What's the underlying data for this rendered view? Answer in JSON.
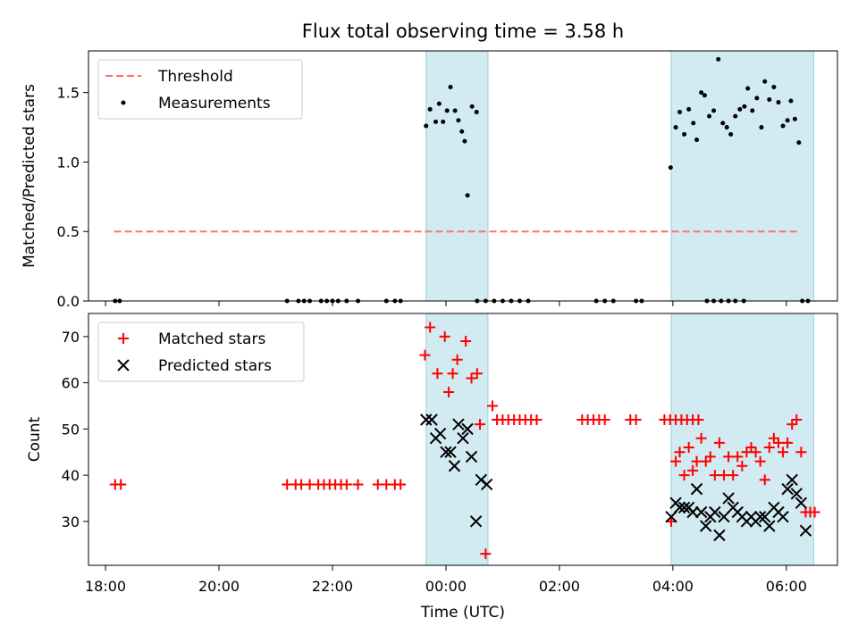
{
  "chart_data": [
    {
      "type": "scatter",
      "title": "Flux total observing time = 3.58 h",
      "ylabel": "Matched/Predicted stars",
      "xlabel": "",
      "ylim": [
        0,
        1.8
      ],
      "yticks": [
        "0.0",
        "0.5",
        "1.0",
        "1.5"
      ],
      "xrange_hours": [
        17.7,
        30.9
      ],
      "xticks_hours": [
        18,
        20,
        22,
        24,
        26,
        28,
        30
      ],
      "legend_position": "top-left",
      "highlight_spans_hours": [
        [
          23.65,
          24.74
        ],
        [
          27.97,
          30.48
        ]
      ],
      "highlight_color": "#add8e6",
      "series": [
        {
          "name": "Threshold",
          "style": "dashed-line",
          "color": "#ff7070",
          "x_hours": [
            18.15,
            30.25
          ],
          "y": [
            0.5,
            0.5
          ]
        },
        {
          "name": "Measurements",
          "style": "dot",
          "color": "#000000",
          "x_hours": [
            18.17,
            18.25,
            21.2,
            21.4,
            21.5,
            21.6,
            21.8,
            21.9,
            22.0,
            22.1,
            22.25,
            22.45,
            22.95,
            23.1,
            23.2,
            24.55,
            24.7,
            24.85,
            25.0,
            25.15,
            25.3,
            25.45,
            26.65,
            26.8,
            26.95,
            27.35,
            27.45,
            28.6,
            28.72,
            28.85,
            28.98,
            29.1,
            29.25,
            30.28,
            30.38
          ],
          "y_dots_zero": true,
          "points": [
            [
              23.65,
              1.26
            ],
            [
              23.72,
              1.38
            ],
            [
              23.82,
              1.29
            ],
            [
              23.88,
              1.42
            ],
            [
              23.95,
              1.29
            ],
            [
              24.02,
              1.37
            ],
            [
              24.08,
              1.54
            ],
            [
              24.16,
              1.37
            ],
            [
              24.22,
              1.3
            ],
            [
              24.28,
              1.22
            ],
            [
              24.33,
              1.15
            ],
            [
              24.38,
              0.76
            ],
            [
              24.46,
              1.4
            ],
            [
              24.54,
              1.36
            ],
            [
              27.96,
              0.96
            ],
            [
              28.05,
              1.25
            ],
            [
              28.12,
              1.36
            ],
            [
              28.2,
              1.2
            ],
            [
              28.28,
              1.38
            ],
            [
              28.36,
              1.28
            ],
            [
              28.42,
              1.16
            ],
            [
              28.5,
              1.5
            ],
            [
              28.56,
              1.48
            ],
            [
              28.64,
              1.33
            ],
            [
              28.72,
              1.37
            ],
            [
              28.8,
              1.74
            ],
            [
              28.88,
              1.28
            ],
            [
              28.95,
              1.25
            ],
            [
              29.02,
              1.2
            ],
            [
              29.1,
              1.33
            ],
            [
              29.18,
              1.38
            ],
            [
              29.26,
              1.4
            ],
            [
              29.32,
              1.53
            ],
            [
              29.4,
              1.37
            ],
            [
              29.48,
              1.46
            ],
            [
              29.56,
              1.25
            ],
            [
              29.62,
              1.58
            ],
            [
              29.7,
              1.45
            ],
            [
              29.78,
              1.54
            ],
            [
              29.86,
              1.43
            ],
            [
              29.94,
              1.26
            ],
            [
              30.02,
              1.3
            ],
            [
              30.08,
              1.44
            ],
            [
              30.15,
              1.31
            ],
            [
              30.22,
              1.14
            ]
          ]
        }
      ]
    },
    {
      "type": "scatter",
      "title": "",
      "ylabel": "Count",
      "xlabel": "Time (UTC)",
      "ylim": [
        20.5,
        75
      ],
      "yticks": [
        "30",
        "40",
        "50",
        "60",
        "70"
      ],
      "xrange_hours": [
        17.7,
        30.9
      ],
      "xticks_hours": [
        18,
        20,
        22,
        24,
        26,
        28,
        30
      ],
      "xticklabels": [
        "18:00",
        "20:00",
        "22:00",
        "00:00",
        "02:00",
        "04:00",
        "06:00"
      ],
      "legend_position": "top-left",
      "highlight_spans_hours": [
        [
          23.65,
          24.74
        ],
        [
          27.97,
          30.48
        ]
      ],
      "series": [
        {
          "name": "Matched stars",
          "marker": "plus",
          "color": "#ff0000",
          "points": [
            [
              18.17,
              38
            ],
            [
              18.27,
              38
            ],
            [
              21.2,
              38
            ],
            [
              21.35,
              38
            ],
            [
              21.45,
              38
            ],
            [
              21.6,
              38
            ],
            [
              21.75,
              38
            ],
            [
              21.85,
              38
            ],
            [
              21.95,
              38
            ],
            [
              22.05,
              38
            ],
            [
              22.15,
              38
            ],
            [
              22.25,
              38
            ],
            [
              22.45,
              38
            ],
            [
              22.8,
              38
            ],
            [
              22.95,
              38
            ],
            [
              23.1,
              38
            ],
            [
              23.2,
              38
            ],
            [
              23.63,
              66
            ],
            [
              23.72,
              72
            ],
            [
              23.85,
              62
            ],
            [
              23.98,
              70
            ],
            [
              24.05,
              58
            ],
            [
              24.12,
              62
            ],
            [
              24.2,
              65
            ],
            [
              24.35,
              69
            ],
            [
              24.45,
              61
            ],
            [
              24.55,
              62
            ],
            [
              24.6,
              51
            ],
            [
              24.7,
              23
            ],
            [
              24.82,
              55
            ],
            [
              24.9,
              52
            ],
            [
              25.0,
              52
            ],
            [
              25.1,
              52
            ],
            [
              25.2,
              52
            ],
            [
              25.3,
              52
            ],
            [
              25.4,
              52
            ],
            [
              25.5,
              52
            ],
            [
              25.6,
              52
            ],
            [
              26.4,
              52
            ],
            [
              26.5,
              52
            ],
            [
              26.6,
              52
            ],
            [
              26.7,
              52
            ],
            [
              26.8,
              52
            ],
            [
              27.25,
              52
            ],
            [
              27.35,
              52
            ],
            [
              27.85,
              52
            ],
            [
              27.95,
              52
            ],
            [
              28.05,
              52
            ],
            [
              28.15,
              52
            ],
            [
              28.25,
              52
            ],
            [
              28.35,
              52
            ],
            [
              28.45,
              52
            ],
            [
              27.97,
              30
            ],
            [
              28.05,
              43
            ],
            [
              28.12,
              45
            ],
            [
              28.2,
              40
            ],
            [
              28.28,
              46
            ],
            [
              28.35,
              41
            ],
            [
              28.42,
              43
            ],
            [
              28.5,
              48
            ],
            [
              28.58,
              43
            ],
            [
              28.66,
              44
            ],
            [
              28.74,
              40
            ],
            [
              28.82,
              47
            ],
            [
              28.9,
              40
            ],
            [
              28.98,
              44
            ],
            [
              29.06,
              40
            ],
            [
              29.14,
              44
            ],
            [
              29.22,
              42
            ],
            [
              29.3,
              45
            ],
            [
              29.38,
              46
            ],
            [
              29.46,
              45
            ],
            [
              29.54,
              43
            ],
            [
              29.62,
              39
            ],
            [
              29.7,
              46
            ],
            [
              29.78,
              48
            ],
            [
              29.86,
              47
            ],
            [
              29.94,
              45
            ],
            [
              30.02,
              47
            ],
            [
              30.1,
              51
            ],
            [
              30.18,
              52
            ],
            [
              30.26,
              45
            ],
            [
              30.34,
              32
            ],
            [
              30.42,
              32
            ],
            [
              30.5,
              32
            ]
          ]
        },
        {
          "name": "Predicted stars",
          "marker": "x",
          "color": "#000000",
          "points": [
            [
              23.65,
              52
            ],
            [
              23.75,
              52
            ],
            [
              23.82,
              48
            ],
            [
              23.9,
              49
            ],
            [
              24.0,
              45
            ],
            [
              24.08,
              45
            ],
            [
              24.15,
              42
            ],
            [
              24.22,
              51
            ],
            [
              24.3,
              48
            ],
            [
              24.38,
              50
            ],
            [
              24.45,
              44
            ],
            [
              24.53,
              30
            ],
            [
              24.62,
              39
            ],
            [
              24.72,
              38
            ],
            [
              27.97,
              31
            ],
            [
              28.05,
              34
            ],
            [
              28.12,
              33
            ],
            [
              28.2,
              33
            ],
            [
              28.28,
              33
            ],
            [
              28.35,
              32
            ],
            [
              28.42,
              37
            ],
            [
              28.5,
              32
            ],
            [
              28.58,
              29
            ],
            [
              28.66,
              31
            ],
            [
              28.74,
              32
            ],
            [
              28.82,
              27
            ],
            [
              28.9,
              31
            ],
            [
              28.98,
              35
            ],
            [
              29.06,
              33
            ],
            [
              29.14,
              32
            ],
            [
              29.22,
              31
            ],
            [
              29.3,
              30
            ],
            [
              29.38,
              31
            ],
            [
              29.46,
              30
            ],
            [
              29.54,
              31
            ],
            [
              29.62,
              31
            ],
            [
              29.7,
              29
            ],
            [
              29.78,
              33
            ],
            [
              29.86,
              32
            ],
            [
              29.94,
              31
            ],
            [
              30.02,
              37
            ],
            [
              30.1,
              39
            ],
            [
              30.18,
              36
            ],
            [
              30.26,
              34
            ],
            [
              30.34,
              28
            ]
          ]
        }
      ]
    }
  ]
}
